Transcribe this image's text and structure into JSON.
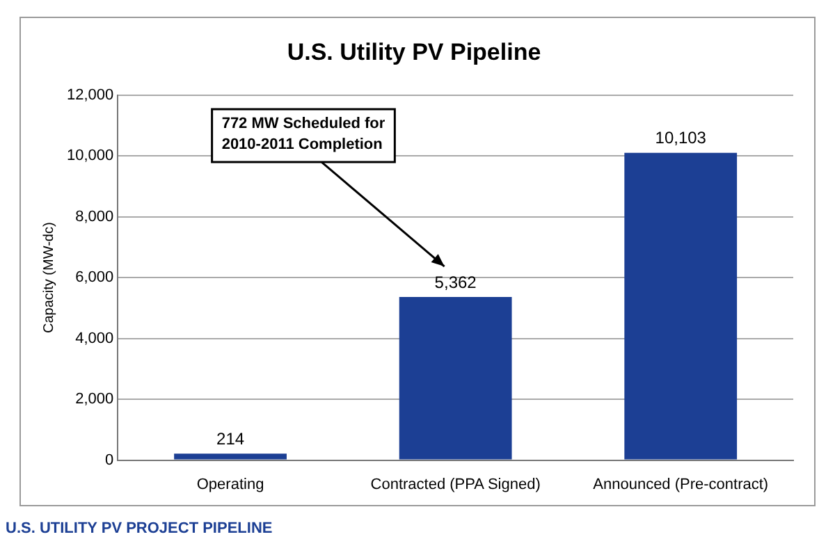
{
  "chart_data": {
    "type": "bar",
    "title": "U.S. Utility PV Pipeline",
    "ylabel": "Capacity (MW-dc)",
    "categories": [
      "Operating",
      "Contracted (PPA Signed)",
      "Announced (Pre-contract)"
    ],
    "values": [
      214,
      5362,
      10103
    ],
    "value_labels": [
      "214",
      "5,362",
      "10,103"
    ],
    "color": "#1c3f94",
    "ylim": [
      0,
      12000
    ],
    "yticks": [
      {
        "value": 0,
        "label": "0"
      },
      {
        "value": 2000,
        "label": "2,000"
      },
      {
        "value": 4000,
        "label": "4,000"
      },
      {
        "value": 6000,
        "label": "6,000"
      },
      {
        "value": 8000,
        "label": "8,000"
      },
      {
        "value": 10000,
        "label": "10,000"
      },
      {
        "value": 12000,
        "label": "12,000"
      }
    ],
    "grid": "y",
    "legend": false,
    "annotations": [
      "772 MW Scheduled for\n2010-2011 Completion",
      "U.S. UTILITY PV PROJECT PIPELINE"
    ]
  }
}
